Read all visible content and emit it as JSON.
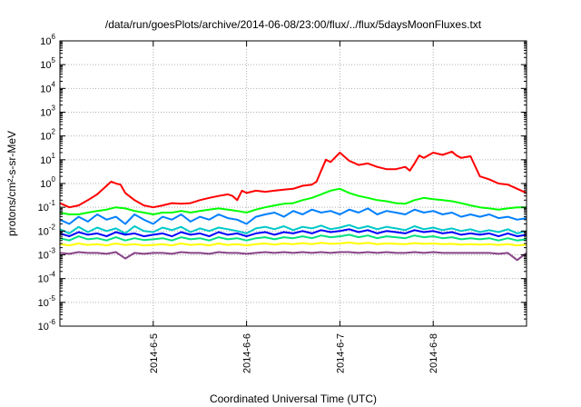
{
  "chart_data": {
    "type": "line",
    "title": "/data/run/goesPlots/archive/2014-06-08/23:00/flux/../flux/5daysMoonFluxes.txt",
    "xlabel": "Coordinated Universal Time (UTC)",
    "ylabel": "protons/cm²-s-sr-MeV",
    "yscale": "log",
    "ylim": [
      1e-06,
      1000000.0
    ],
    "xlim": [
      0,
      5
    ],
    "x_ticks": [
      {
        "x": 1,
        "label": "2014-6-5"
      },
      {
        "x": 2,
        "label": "2014-6-6"
      },
      {
        "x": 3,
        "label": "2014-6-7"
      },
      {
        "x": 4,
        "label": "2014-6-8"
      }
    ],
    "y_ticks": [
      {
        "exp": -6,
        "base": "10",
        "sup": "-6"
      },
      {
        "exp": -5,
        "base": "10",
        "sup": "-5"
      },
      {
        "exp": -4,
        "base": "10",
        "sup": "-4"
      },
      {
        "exp": -3,
        "base": "10",
        "sup": "-3"
      },
      {
        "exp": -2,
        "base": "10",
        "sup": "-2"
      },
      {
        "exp": -1,
        "base": "10",
        "sup": "-1"
      },
      {
        "exp": 0,
        "base": "10",
        "sup": "0"
      },
      {
        "exp": 1,
        "base": "10",
        "sup": "1"
      },
      {
        "exp": 2,
        "base": "10",
        "sup": "2"
      },
      {
        "exp": 3,
        "base": "10",
        "sup": "3"
      },
      {
        "exp": 4,
        "base": "10",
        "sup": "4"
      },
      {
        "exp": 5,
        "base": "10",
        "sup": "5"
      },
      {
        "exp": 6,
        "base": "10",
        "sup": "6"
      }
    ],
    "grid": true,
    "legend": "none",
    "series": [
      {
        "color": "#ff0000",
        "x": [
          0,
          0.1,
          0.2,
          0.3,
          0.4,
          0.5,
          0.55,
          0.6,
          0.65,
          0.7,
          0.8,
          0.9,
          1.0,
          1.1,
          1.2,
          1.3,
          1.4,
          1.5,
          1.6,
          1.7,
          1.8,
          1.85,
          1.9,
          1.95,
          2.0,
          2.1,
          2.2,
          2.3,
          2.4,
          2.5,
          2.6,
          2.7,
          2.75,
          2.8,
          2.85,
          2.9,
          3.0,
          3.1,
          3.2,
          3.3,
          3.4,
          3.5,
          3.6,
          3.7,
          3.75,
          3.8,
          3.85,
          3.9,
          4.0,
          4.1,
          4.2,
          4.25,
          4.3,
          4.4,
          4.5,
          4.6,
          4.7,
          4.8,
          4.9,
          5.0
        ],
        "y": [
          0.15,
          0.1,
          0.12,
          0.2,
          0.35,
          0.8,
          1.2,
          1.0,
          0.9,
          0.4,
          0.2,
          0.12,
          0.1,
          0.12,
          0.15,
          0.14,
          0.15,
          0.2,
          0.25,
          0.3,
          0.35,
          0.3,
          0.2,
          0.5,
          0.4,
          0.5,
          0.45,
          0.5,
          0.55,
          0.6,
          0.8,
          0.9,
          1.2,
          3.5,
          10,
          8,
          20,
          9,
          6,
          7,
          5,
          4,
          4,
          5,
          3.5,
          7,
          15,
          12,
          20,
          16,
          22,
          15,
          12,
          14,
          2,
          1.5,
          1.0,
          0.9,
          0.6,
          0.4
        ]
      },
      {
        "color": "#00ff00",
        "x": [
          0,
          0.1,
          0.2,
          0.3,
          0.4,
          0.5,
          0.6,
          0.7,
          0.8,
          0.9,
          1.0,
          1.1,
          1.2,
          1.3,
          1.4,
          1.5,
          1.6,
          1.7,
          1.8,
          1.9,
          2.0,
          2.1,
          2.2,
          2.3,
          2.4,
          2.5,
          2.6,
          2.7,
          2.8,
          2.9,
          3.0,
          3.1,
          3.2,
          3.3,
          3.4,
          3.5,
          3.6,
          3.7,
          3.8,
          3.9,
          4.0,
          4.1,
          4.2,
          4.3,
          4.4,
          4.5,
          4.6,
          4.7,
          4.8,
          4.9,
          5.0
        ],
        "y": [
          0.06,
          0.05,
          0.05,
          0.06,
          0.07,
          0.08,
          0.1,
          0.09,
          0.07,
          0.06,
          0.05,
          0.06,
          0.06,
          0.07,
          0.06,
          0.07,
          0.08,
          0.09,
          0.08,
          0.07,
          0.06,
          0.08,
          0.1,
          0.12,
          0.14,
          0.15,
          0.2,
          0.25,
          0.35,
          0.5,
          0.6,
          0.4,
          0.3,
          0.25,
          0.2,
          0.18,
          0.15,
          0.14,
          0.2,
          0.25,
          0.22,
          0.2,
          0.18,
          0.15,
          0.12,
          0.1,
          0.09,
          0.08,
          0.09,
          0.1,
          0.1
        ]
      },
      {
        "color": "#0080ff",
        "x": [
          0,
          0.1,
          0.2,
          0.3,
          0.4,
          0.5,
          0.6,
          0.7,
          0.8,
          0.9,
          1.0,
          1.1,
          1.2,
          1.3,
          1.4,
          1.5,
          1.6,
          1.7,
          1.8,
          1.9,
          2.0,
          2.1,
          2.2,
          2.3,
          2.4,
          2.5,
          2.6,
          2.7,
          2.8,
          2.9,
          3.0,
          3.1,
          3.2,
          3.3,
          3.4,
          3.5,
          3.6,
          3.7,
          3.8,
          3.9,
          4.0,
          4.1,
          4.2,
          4.3,
          4.4,
          4.5,
          4.6,
          4.7,
          4.8,
          4.9,
          5.0
        ],
        "y": [
          0.03,
          0.02,
          0.04,
          0.025,
          0.05,
          0.03,
          0.04,
          0.02,
          0.05,
          0.03,
          0.02,
          0.04,
          0.03,
          0.05,
          0.025,
          0.04,
          0.03,
          0.05,
          0.035,
          0.03,
          0.02,
          0.04,
          0.05,
          0.06,
          0.04,
          0.07,
          0.05,
          0.08,
          0.06,
          0.07,
          0.05,
          0.08,
          0.06,
          0.09,
          0.05,
          0.07,
          0.06,
          0.05,
          0.08,
          0.06,
          0.07,
          0.05,
          0.06,
          0.04,
          0.05,
          0.04,
          0.05,
          0.035,
          0.04,
          0.03,
          0.035
        ]
      },
      {
        "color": "#00c8c8",
        "x": [
          0,
          0.1,
          0.2,
          0.3,
          0.4,
          0.5,
          0.6,
          0.7,
          0.8,
          0.9,
          1.0,
          1.1,
          1.2,
          1.3,
          1.4,
          1.5,
          1.6,
          1.7,
          1.8,
          1.9,
          2.0,
          2.1,
          2.2,
          2.3,
          2.4,
          2.5,
          2.6,
          2.7,
          2.8,
          2.9,
          3.0,
          3.1,
          3.2,
          3.3,
          3.4,
          3.5,
          3.6,
          3.7,
          3.8,
          3.9,
          4.0,
          4.1,
          4.2,
          4.3,
          4.4,
          4.5,
          4.6,
          4.7,
          4.8,
          4.9,
          5.0
        ],
        "y": [
          0.012,
          0.008,
          0.015,
          0.009,
          0.014,
          0.01,
          0.013,
          0.008,
          0.016,
          0.01,
          0.009,
          0.014,
          0.011,
          0.015,
          0.009,
          0.013,
          0.01,
          0.014,
          0.012,
          0.01,
          0.008,
          0.013,
          0.015,
          0.012,
          0.016,
          0.011,
          0.015,
          0.013,
          0.017,
          0.012,
          0.014,
          0.018,
          0.013,
          0.016,
          0.012,
          0.015,
          0.013,
          0.011,
          0.016,
          0.012,
          0.014,
          0.011,
          0.013,
          0.01,
          0.012,
          0.009,
          0.011,
          0.009,
          0.012,
          0.008,
          0.01
        ]
      },
      {
        "color": "#0000ff",
        "x": [
          0,
          0.1,
          0.2,
          0.3,
          0.4,
          0.5,
          0.6,
          0.7,
          0.8,
          0.9,
          1.0,
          1.1,
          1.2,
          1.3,
          1.4,
          1.5,
          1.6,
          1.7,
          1.8,
          1.9,
          2.0,
          2.1,
          2.2,
          2.3,
          2.4,
          2.5,
          2.6,
          2.7,
          2.8,
          2.9,
          3.0,
          3.1,
          3.2,
          3.3,
          3.4,
          3.5,
          3.6,
          3.7,
          3.8,
          3.9,
          4.0,
          4.1,
          4.2,
          4.3,
          4.4,
          4.5,
          4.6,
          4.7,
          4.8,
          4.9,
          5.0
        ],
        "y": [
          0.008,
          0.006,
          0.009,
          0.007,
          0.008,
          0.006,
          0.009,
          0.007,
          0.008,
          0.006,
          0.007,
          0.008,
          0.006,
          0.009,
          0.007,
          0.008,
          0.006,
          0.009,
          0.007,
          0.008,
          0.006,
          0.008,
          0.009,
          0.007,
          0.009,
          0.008,
          0.01,
          0.008,
          0.011,
          0.009,
          0.01,
          0.012,
          0.009,
          0.011,
          0.008,
          0.01,
          0.009,
          0.008,
          0.011,
          0.009,
          0.01,
          0.008,
          0.009,
          0.007,
          0.008,
          0.007,
          0.008,
          0.006,
          0.008,
          0.006,
          0.007
        ]
      },
      {
        "color": "#00e080",
        "x": [
          0,
          0.1,
          0.2,
          0.3,
          0.4,
          0.5,
          0.6,
          0.7,
          0.8,
          0.9,
          1.0,
          1.1,
          1.2,
          1.3,
          1.4,
          1.5,
          1.6,
          1.7,
          1.8,
          1.9,
          2.0,
          2.1,
          2.2,
          2.3,
          2.4,
          2.5,
          2.6,
          2.7,
          2.8,
          2.9,
          3.0,
          3.1,
          3.2,
          3.3,
          3.4,
          3.5,
          3.6,
          3.7,
          3.8,
          3.9,
          4.0,
          4.1,
          4.2,
          4.3,
          4.4,
          4.5,
          4.6,
          4.7,
          4.8,
          4.9,
          5.0
        ],
        "y": [
          0.005,
          0.004,
          0.006,
          0.0045,
          0.005,
          0.004,
          0.0055,
          0.004,
          0.005,
          0.0042,
          0.0045,
          0.005,
          0.004,
          0.0055,
          0.0045,
          0.005,
          0.004,
          0.0055,
          0.0045,
          0.005,
          0.004,
          0.005,
          0.0055,
          0.0045,
          0.0055,
          0.005,
          0.006,
          0.005,
          0.0065,
          0.0055,
          0.006,
          0.007,
          0.0055,
          0.0065,
          0.005,
          0.006,
          0.0055,
          0.005,
          0.0065,
          0.0055,
          0.006,
          0.005,
          0.0055,
          0.0045,
          0.005,
          0.0045,
          0.005,
          0.004,
          0.005,
          0.004,
          0.0045
        ]
      },
      {
        "color": "#ffff00",
        "x": [
          0,
          0.1,
          0.2,
          0.3,
          0.4,
          0.5,
          0.6,
          0.7,
          0.8,
          0.9,
          1.0,
          1.1,
          1.2,
          1.3,
          1.4,
          1.5,
          1.6,
          1.7,
          1.8,
          1.9,
          2.0,
          2.1,
          2.2,
          2.3,
          2.4,
          2.5,
          2.6,
          2.7,
          2.8,
          2.9,
          3.0,
          3.1,
          3.2,
          3.3,
          3.4,
          3.5,
          3.6,
          3.7,
          3.8,
          3.9,
          4.0,
          4.1,
          4.2,
          4.3,
          4.4,
          4.5,
          4.6,
          4.7,
          4.8,
          4.9,
          5.0
        ],
        "y": [
          0.0028,
          0.0025,
          0.003,
          0.0026,
          0.0028,
          0.0025,
          0.003,
          0.0026,
          0.0028,
          0.0025,
          0.0026,
          0.0028,
          0.0025,
          0.003,
          0.0026,
          0.0028,
          0.0025,
          0.003,
          0.0026,
          0.0028,
          0.0025,
          0.0028,
          0.003,
          0.0027,
          0.003,
          0.0028,
          0.0031,
          0.0028,
          0.0032,
          0.0029,
          0.003,
          0.0033,
          0.0029,
          0.0032,
          0.0028,
          0.003,
          0.0029,
          0.0028,
          0.0031,
          0.0029,
          0.003,
          0.0028,
          0.0029,
          0.0027,
          0.0028,
          0.0027,
          0.0028,
          0.0026,
          0.0028,
          0.0025,
          0.0027
        ]
      },
      {
        "color": "#884488",
        "x": [
          0,
          0.1,
          0.2,
          0.3,
          0.4,
          0.5,
          0.6,
          0.7,
          0.8,
          0.9,
          1.0,
          1.1,
          1.2,
          1.3,
          1.4,
          1.5,
          1.6,
          1.7,
          1.8,
          1.9,
          2.0,
          2.1,
          2.2,
          2.3,
          2.4,
          2.5,
          2.6,
          2.7,
          2.8,
          2.9,
          3.0,
          3.1,
          3.2,
          3.3,
          3.4,
          3.5,
          3.6,
          3.7,
          3.8,
          3.9,
          4.0,
          4.1,
          4.2,
          4.3,
          4.4,
          4.5,
          4.6,
          4.7,
          4.8,
          4.9,
          5.0
        ],
        "y": [
          0.0012,
          0.0011,
          0.0013,
          0.0012,
          0.0012,
          0.0011,
          0.0013,
          0.0007,
          0.0012,
          0.0011,
          0.0012,
          0.0012,
          0.0011,
          0.0013,
          0.0012,
          0.0012,
          0.0011,
          0.0013,
          0.0012,
          0.0012,
          0.0011,
          0.0012,
          0.0013,
          0.0012,
          0.0013,
          0.0012,
          0.0013,
          0.0012,
          0.0013,
          0.0012,
          0.0013,
          0.0013,
          0.0012,
          0.0013,
          0.0012,
          0.0013,
          0.0012,
          0.0012,
          0.0013,
          0.0012,
          0.0013,
          0.0012,
          0.0012,
          0.0012,
          0.0012,
          0.0012,
          0.0012,
          0.0011,
          0.0012,
          0.0006,
          0.0012
        ]
      }
    ]
  }
}
